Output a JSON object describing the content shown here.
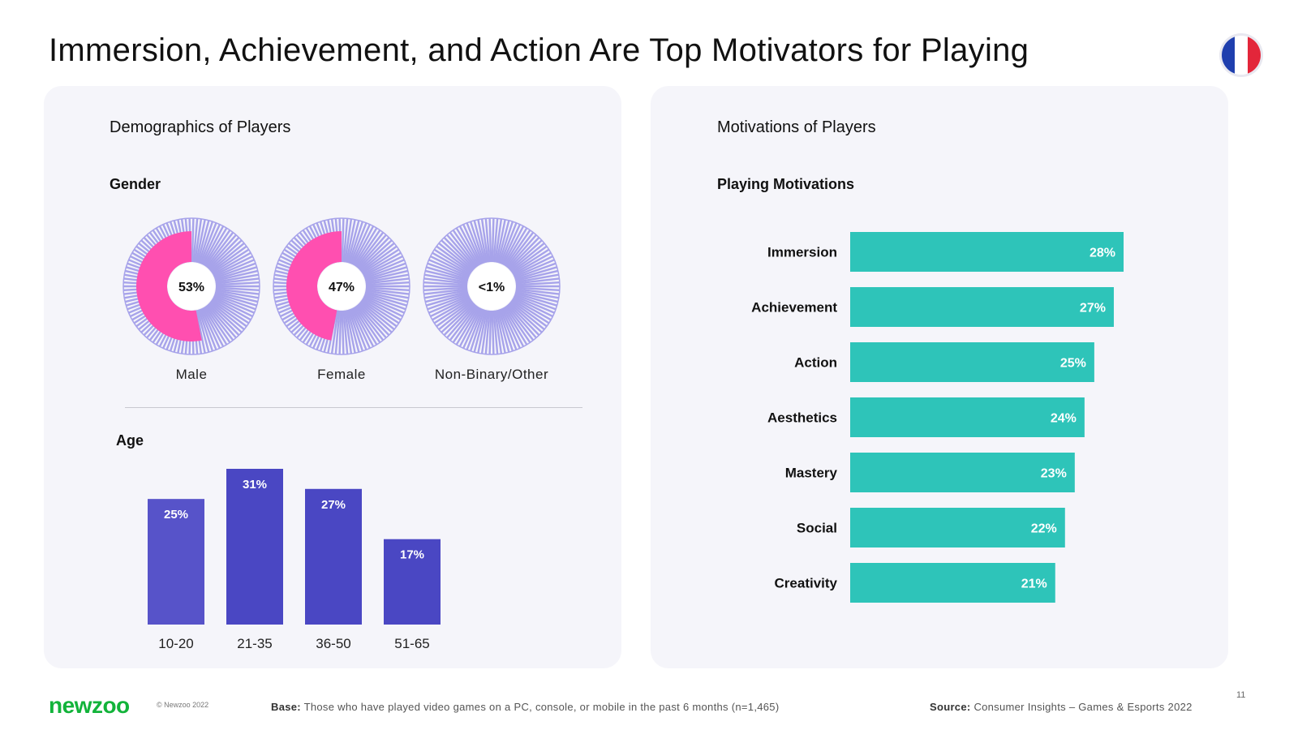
{
  "title": "Immersion, Achievement, and Action Are Top Motivators for Playing",
  "flag_colors": [
    "#1f3fae",
    "#ffffff",
    "#e3263a"
  ],
  "left_panel": {
    "heading": "Demographics of Players",
    "gender_heading": "Gender",
    "age_heading": "Age"
  },
  "right_panel": {
    "heading": "Motivations of Players",
    "sub_heading": "Playing Motivations"
  },
  "colors": {
    "pink": "#ff4fb0",
    "lavender": "#a7a3ea",
    "age_bar": "#4a47c3",
    "age_bar_first": "#5753c9",
    "teal": "#2ec4b9"
  },
  "chart_data": [
    {
      "type": "pie",
      "title": "Gender",
      "categories": [
        "Male",
        "Female",
        "Non-Binary/Other"
      ],
      "values": [
        53,
        47,
        0.5
      ],
      "value_labels": [
        "53%",
        "47%",
        "<1%"
      ]
    },
    {
      "type": "bar",
      "title": "Age",
      "categories": [
        "10-20",
        "21-35",
        "36-50",
        "51-65"
      ],
      "values": [
        25,
        31,
        27,
        17
      ],
      "value_labels": [
        "25%",
        "31%",
        "27%",
        "17%"
      ],
      "ylim": [
        0,
        31
      ]
    },
    {
      "type": "bar",
      "orientation": "horizontal",
      "title": "Playing Motivations",
      "categories": [
        "Immersion",
        "Achievement",
        "Action",
        "Aesthetics",
        "Mastery",
        "Social",
        "Creativity"
      ],
      "values": [
        28,
        27,
        25,
        24,
        23,
        22,
        21
      ],
      "value_labels": [
        "28%",
        "27%",
        "25%",
        "24%",
        "23%",
        "22%",
        "21%"
      ],
      "xlim": [
        0,
        28
      ]
    }
  ],
  "footer": {
    "logo": "newzoo",
    "copyright": "© Newzoo 2022",
    "base_label": "Base:",
    "base_text": "Those who have played video games on a PC, console, or mobile in the past 6 months (n=1,465)",
    "source_label": "Source:",
    "source_text": "Consumer Insights – Games & Esports 2022",
    "page_number": "11"
  }
}
